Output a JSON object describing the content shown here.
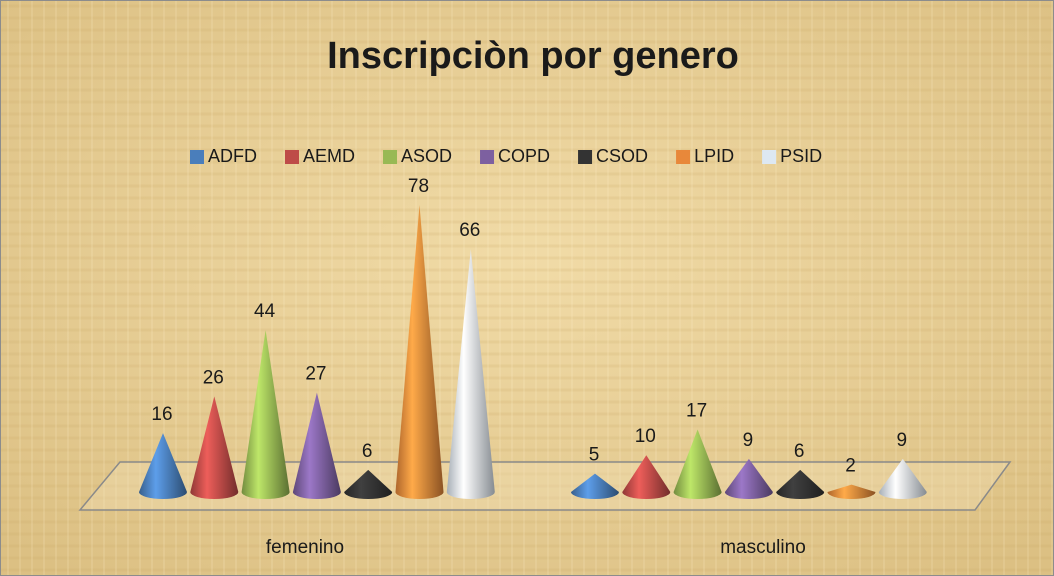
{
  "chart_data": {
    "type": "cone",
    "title": "Inscripciòn por genero",
    "categories": [
      "femenino",
      "masculino"
    ],
    "series": [
      {
        "name": "ADFD",
        "color": "#4a7ebb",
        "values": [
          16,
          5
        ]
      },
      {
        "name": "AEMD",
        "color": "#be4b48",
        "values": [
          26,
          10
        ]
      },
      {
        "name": "ASOD",
        "color": "#98b954",
        "values": [
          44,
          17
        ]
      },
      {
        "name": "COPD",
        "color": "#7d60a0",
        "values": [
          27,
          9
        ]
      },
      {
        "name": "CSOD",
        "color": "#333333",
        "values": [
          6,
          6
        ]
      },
      {
        "name": "LPID",
        "color": "#e8883a",
        "values": [
          78,
          2
        ]
      },
      {
        "name": "PSID",
        "color": "#dde8f2",
        "values": [
          66,
          9
        ]
      }
    ],
    "legend": "top"
  }
}
